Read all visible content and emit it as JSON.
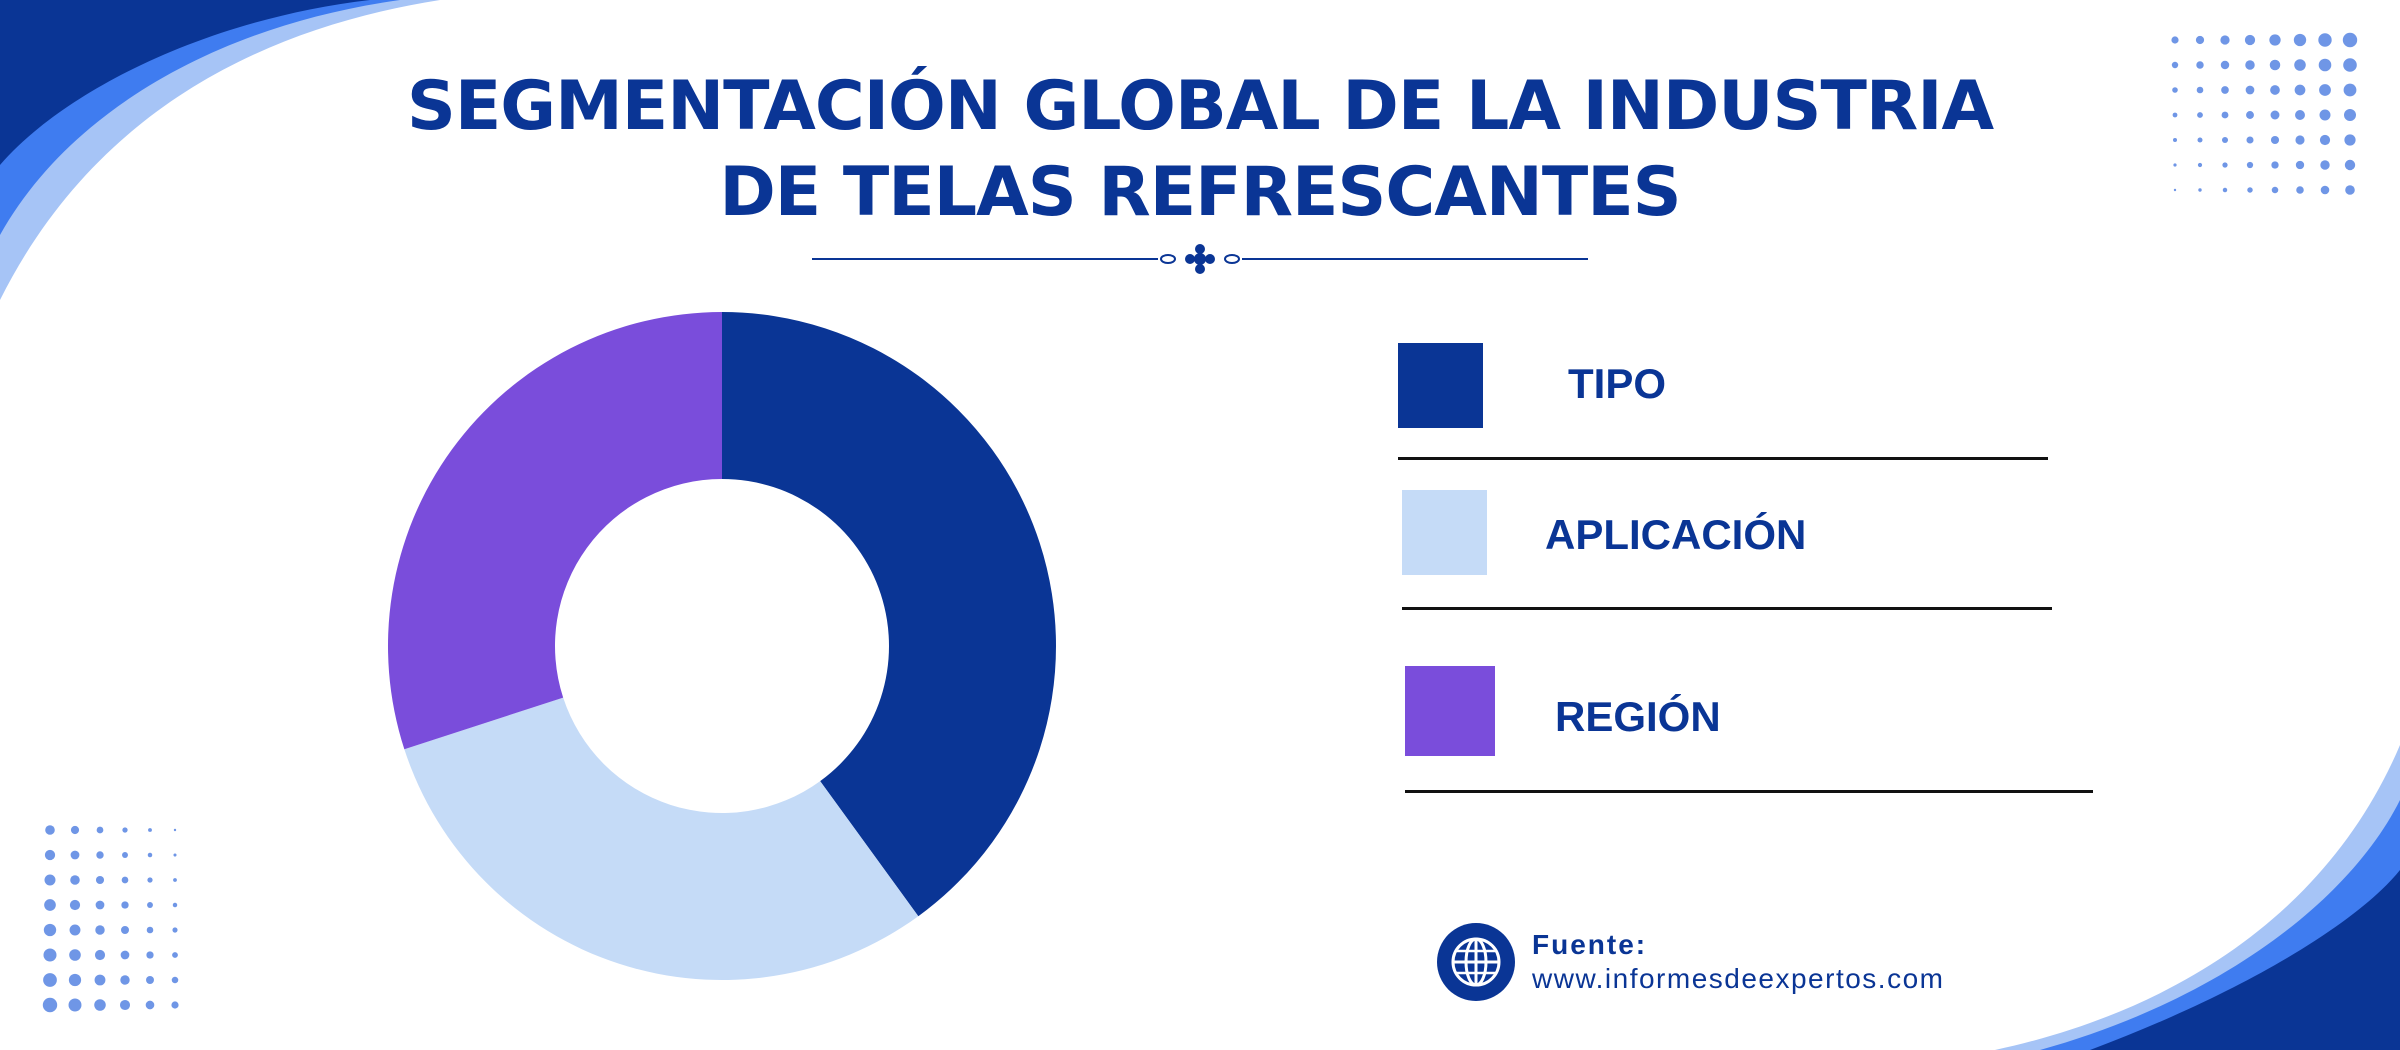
{
  "title_lines": [
    "SEGMENTACIÓN GLOBAL DE LA INDUSTRIA",
    "DE TELAS REFRESCANTES"
  ],
  "colors": {
    "title": "#0a3595",
    "navy": "#0a3595",
    "light_blue": "#c5dbf7",
    "purple": "#7a4ddb",
    "decor_blue": "#3f7cf0",
    "decor_light": "#a6c4f6",
    "dots": "#6f96e6"
  },
  "chart_data": {
    "type": "pie",
    "donut": true,
    "categories": [
      "TIPO",
      "APLICACIÓN",
      "REGIÓN"
    ],
    "values": [
      40,
      30,
      30
    ],
    "colors": [
      "#0a3595",
      "#c5dbf7",
      "#7a4ddb"
    ],
    "legend_position": "right"
  },
  "legend": [
    {
      "label": "TIPO",
      "color": "#0a3595"
    },
    {
      "label": "APLICACIÓN",
      "color": "#c5dbf7"
    },
    {
      "label": "REGIÓN",
      "color": "#7a4ddb"
    }
  ],
  "source": {
    "label": "Fuente:",
    "url": "www.informesdeexpertos.com",
    "icon": "globe-icon"
  }
}
